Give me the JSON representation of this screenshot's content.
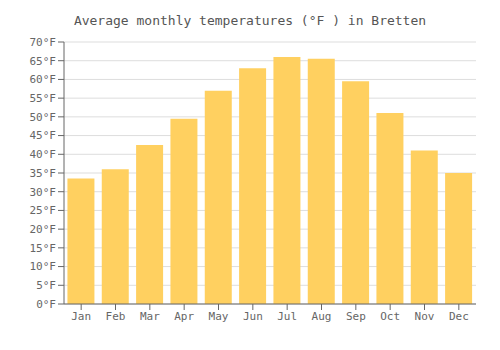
{
  "chart_data": {
    "type": "bar",
    "title": "Average monthly temperatures (°F ) in Bretten",
    "categories": [
      "Jan",
      "Feb",
      "Mar",
      "Apr",
      "May",
      "Jun",
      "Jul",
      "Aug",
      "Sep",
      "Oct",
      "Nov",
      "Dec"
    ],
    "values": [
      33.5,
      36.0,
      42.5,
      49.5,
      57.0,
      63.0,
      66.0,
      65.5,
      59.5,
      51.0,
      41.0,
      35.0
    ],
    "color": "#FFD060",
    "ylim": [
      0,
      70
    ],
    "yticks": [
      {
        "value": 0,
        "label": "0°F"
      },
      {
        "value": 5,
        "label": "5°F"
      },
      {
        "value": 10,
        "label": "10°F"
      },
      {
        "value": 15,
        "label": "15°F"
      },
      {
        "value": 20,
        "label": "20°F"
      },
      {
        "value": 25,
        "label": "25°F"
      },
      {
        "value": 30,
        "label": "30°F"
      },
      {
        "value": 35,
        "label": "35°F"
      },
      {
        "value": 40,
        "label": "40°F"
      },
      {
        "value": 45,
        "label": "45°F"
      },
      {
        "value": 50,
        "label": "50°F"
      },
      {
        "value": 55,
        "label": "55°F"
      },
      {
        "value": 60,
        "label": "60°F"
      },
      {
        "value": 65,
        "label": "65°F"
      },
      {
        "value": 70,
        "label": "70°F"
      }
    ],
    "grid": true
  }
}
